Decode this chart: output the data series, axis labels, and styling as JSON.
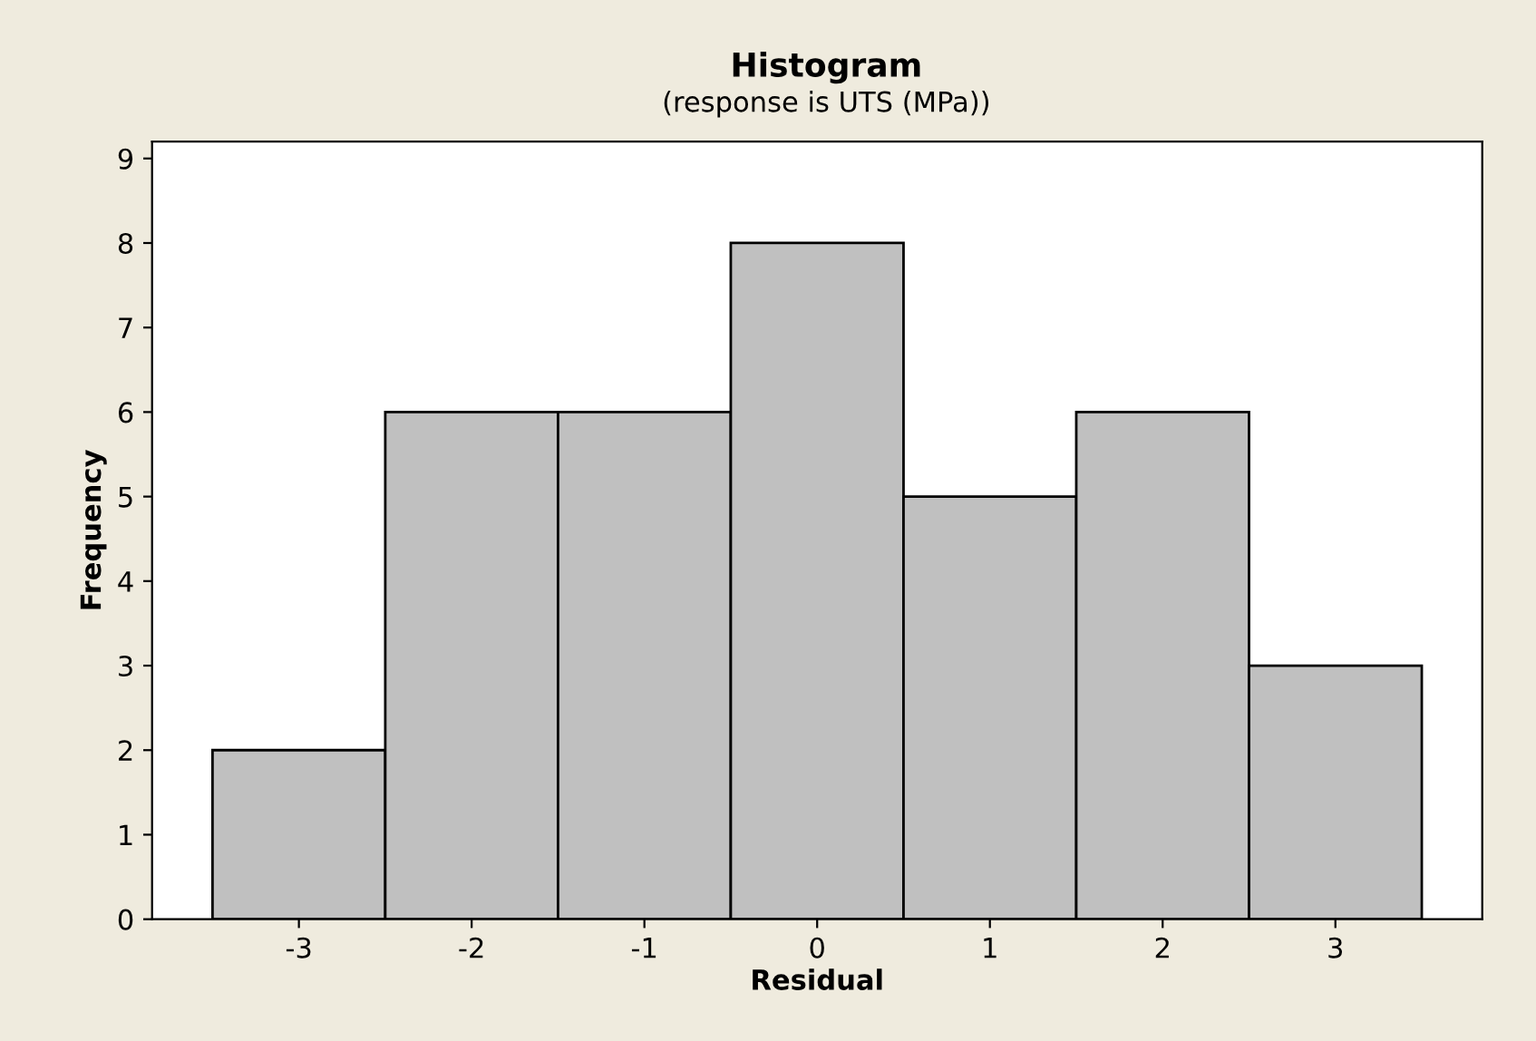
{
  "chart_data": {
    "type": "histogram",
    "title": "Histogram",
    "subtitle": "(response is UTS (MPa))",
    "xlabel": "Residual",
    "ylabel": "Frequency",
    "bins": [
      -3.5,
      -2.5,
      -1.5,
      -0.5,
      0.5,
      1.5,
      2.5,
      3.5
    ],
    "values": [
      2,
      6,
      6,
      8,
      5,
      6,
      3
    ],
    "color": "#c0c0c0",
    "xlim": [
      -3.85,
      3.85
    ],
    "xticks": [
      -3,
      -2,
      -1,
      0,
      1,
      2,
      3
    ],
    "ylim": [
      0,
      9.2
    ],
    "yticks": [
      0,
      1,
      2,
      3,
      4,
      5,
      6,
      7,
      8,
      9
    ],
    "grid": false,
    "legend": false
  }
}
